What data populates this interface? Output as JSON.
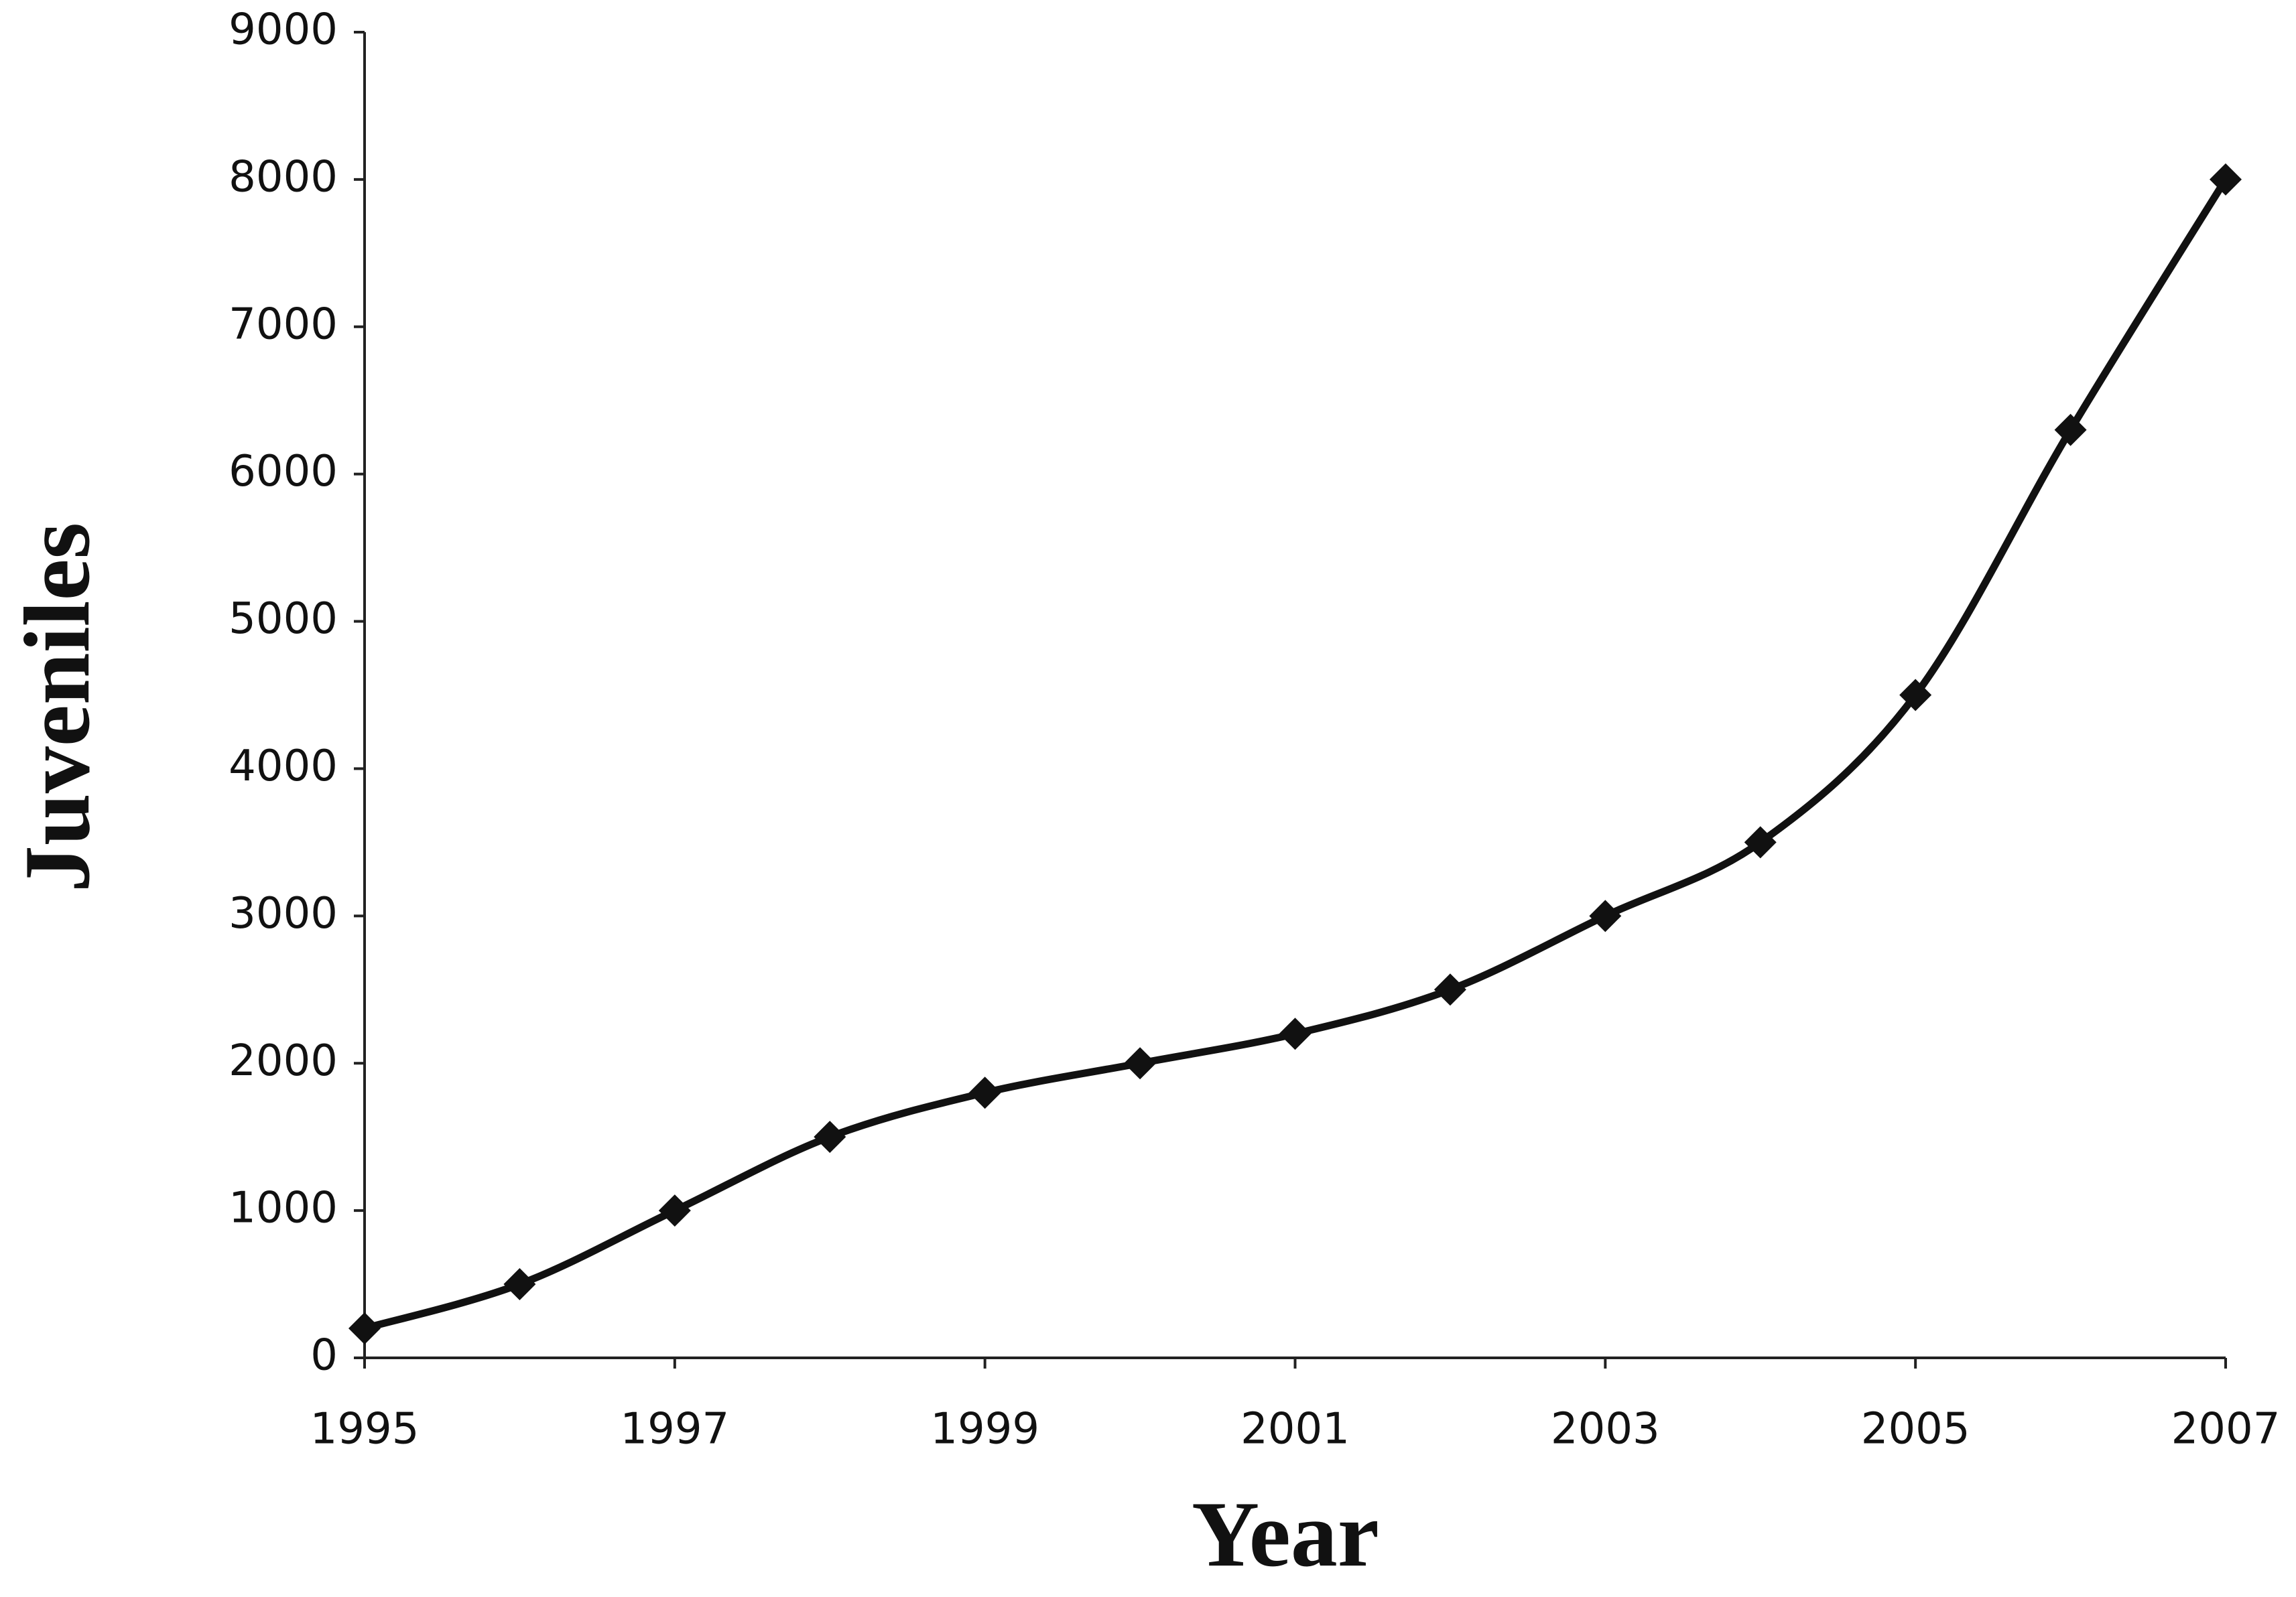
{
  "chart_data": {
    "type": "line",
    "x": [
      1995,
      1996,
      1997,
      1998,
      1999,
      2000,
      2001,
      2002,
      2003,
      2004,
      2005,
      2006,
      2007
    ],
    "series": [
      {
        "color": "#111111",
        "values": [
          200,
          500,
          1000,
          1500,
          1800,
          2000,
          2200,
          2500,
          3000,
          3500,
          4500,
          6300,
          8000
        ]
      }
    ],
    "xlabel": "Year",
    "ylabel": "Juveniles",
    "xlim": [
      1995,
      2007
    ],
    "xticks": [
      1995,
      1997,
      1999,
      2001,
      2003,
      2005,
      2007
    ],
    "ylim": [
      0,
      9000
    ],
    "yticks": [
      0,
      1000,
      2000,
      3000,
      4000,
      5000,
      6000,
      7000,
      8000,
      9000
    ],
    "grid": false
  }
}
